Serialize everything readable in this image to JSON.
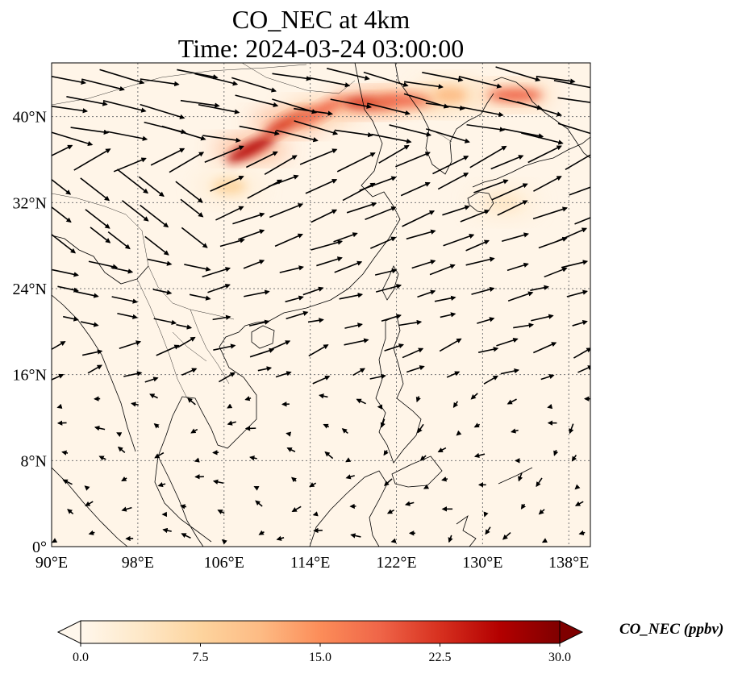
{
  "chart_data": {
    "type": "heatmap",
    "title": "CO_NEC at 4km",
    "subtitle": "Time: 2024-03-24 03:00:00",
    "x_ticks": [
      "90°E",
      "98°E",
      "106°E",
      "114°E",
      "122°E",
      "130°E",
      "138°E"
    ],
    "x_tick_values": [
      90,
      98,
      106,
      114,
      122,
      130,
      138
    ],
    "y_ticks": [
      "0°",
      "8°N",
      "16°N",
      "24°N",
      "32°N",
      "40°N"
    ],
    "y_tick_values": [
      0,
      8,
      16,
      24,
      32,
      40
    ],
    "lon_range": [
      90,
      140
    ],
    "lat_range": [
      0,
      45
    ],
    "grid": true,
    "colorbar": {
      "label": "CO_NEC (ppbv)",
      "ticks": [
        "0.0",
        "7.5",
        "15.0",
        "22.5",
        "30.0"
      ],
      "range": [
        0,
        30
      ],
      "extend": "both",
      "colormap": [
        "#fff7ec",
        "#fee8c8",
        "#fdd49e",
        "#fdbb84",
        "#fc8d59",
        "#ef6548",
        "#d7301f",
        "#b30000",
        "#7f0000"
      ]
    },
    "plume_features": [
      {
        "lon": 108.5,
        "lat": 37.0,
        "value": 26
      },
      {
        "lon": 112.0,
        "lat": 39.5,
        "value": 22
      },
      {
        "lon": 115.0,
        "lat": 40.5,
        "value": 18
      },
      {
        "lon": 119.5,
        "lat": 41.3,
        "value": 24
      },
      {
        "lon": 123.0,
        "lat": 41.5,
        "value": 20
      },
      {
        "lon": 127.0,
        "lat": 42.0,
        "value": 10
      },
      {
        "lon": 133.0,
        "lat": 42.0,
        "value": 18
      },
      {
        "lon": 106.5,
        "lat": 33.5,
        "value": 8
      },
      {
        "lon": 132.0,
        "lat": 32.0,
        "value": 5
      }
    ],
    "wind_field": "quiver vectors (strong westerlies north of ~18°N, weak easterlies south)"
  }
}
